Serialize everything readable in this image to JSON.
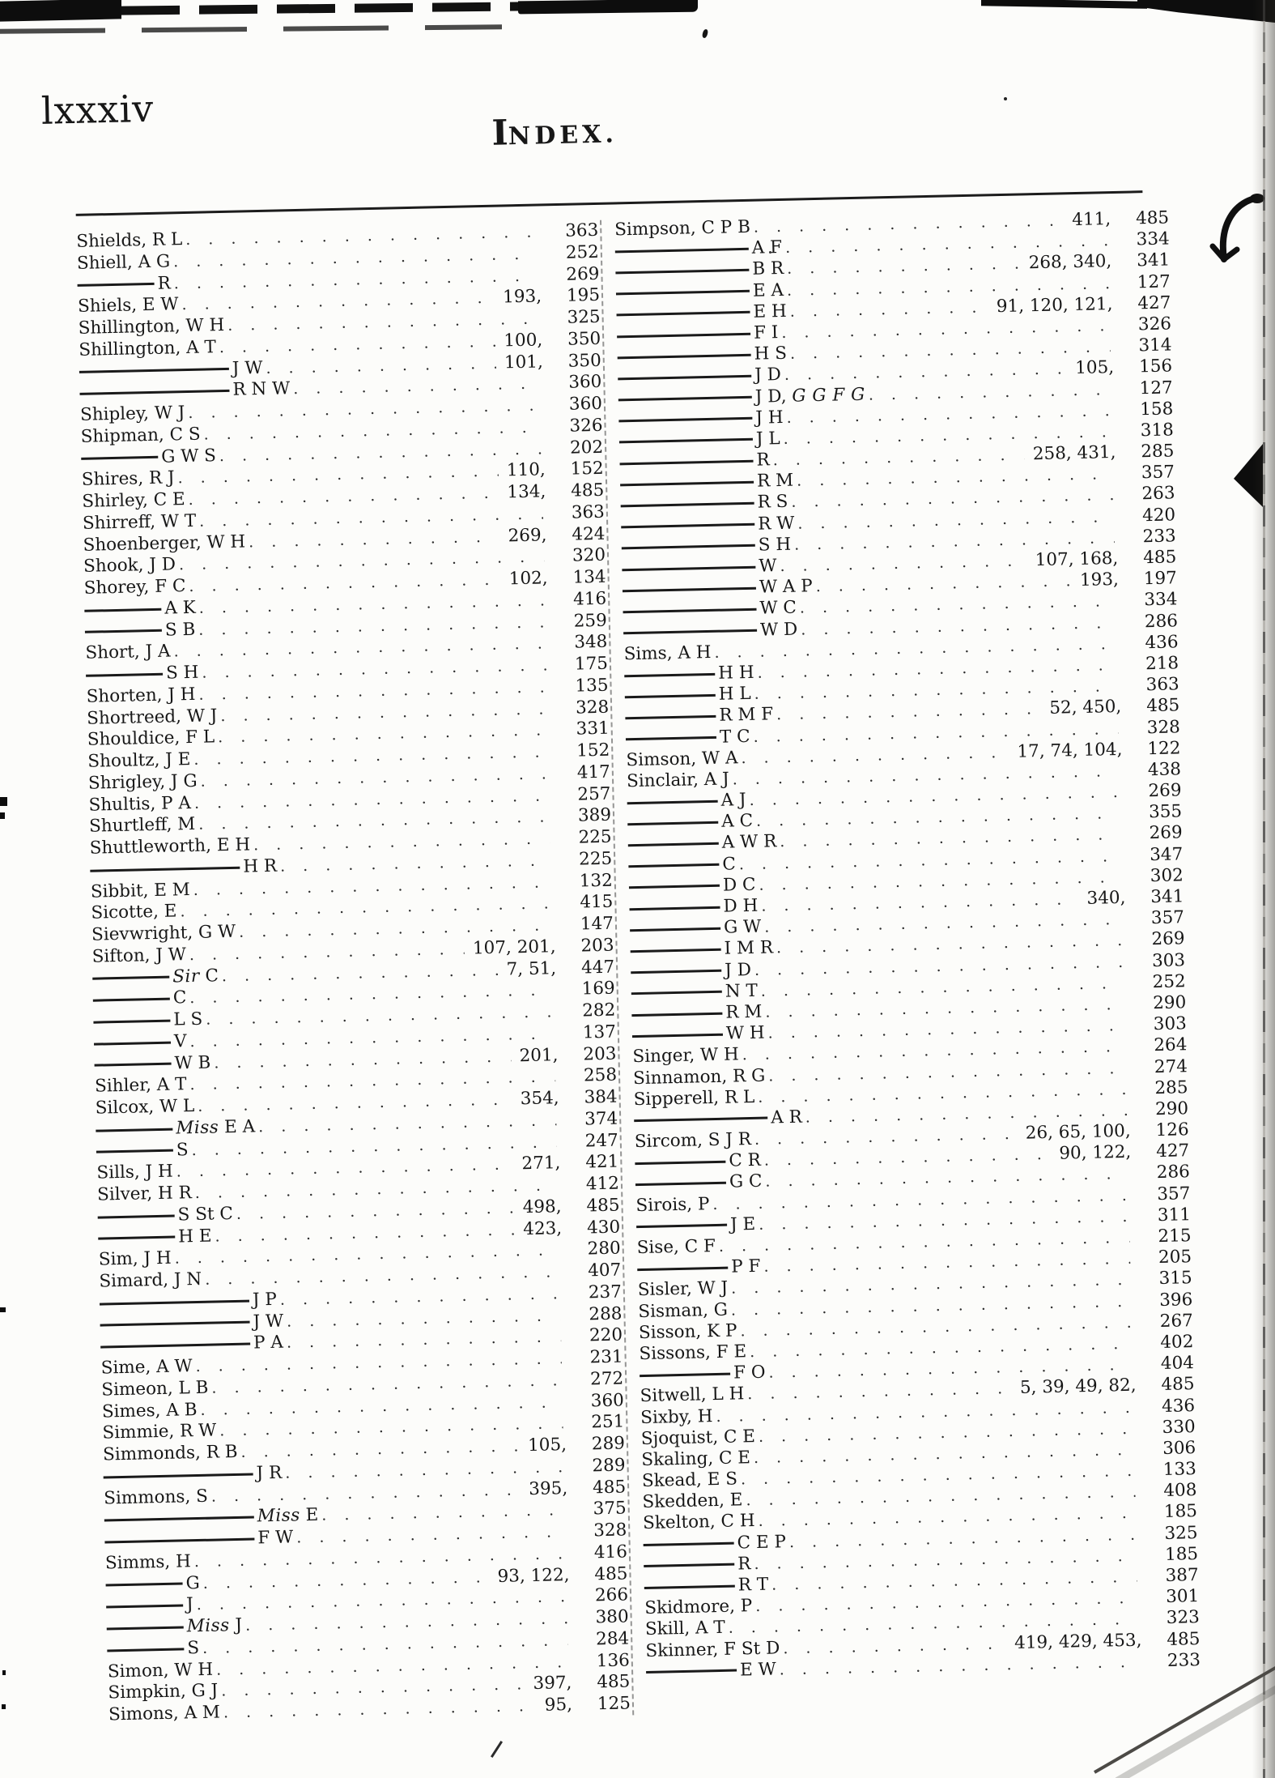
{
  "header": {
    "page_label": "lxxxiv",
    "title_initial": "I",
    "title_rest": "NDEX."
  },
  "columns": [
    {
      "entries": [
        {
          "dash": 0,
          "name": "Shields, R L",
          "refs": "",
          "page": "363"
        },
        {
          "dash": 0,
          "name": "Shiell, A G",
          "refs": "",
          "page": "252"
        },
        {
          "dash": 1,
          "name": "R",
          "refs": "",
          "page": "269"
        },
        {
          "dash": 0,
          "name": "Shiels, E W",
          "refs": "193,",
          "page": "195"
        },
        {
          "dash": 0,
          "name": "Shillington, W H",
          "refs": "",
          "page": "325"
        },
        {
          "dash": 0,
          "name": "Shillington, A T",
          "refs": "100,",
          "page": "350"
        },
        {
          "dash": 2,
          "name": "J W",
          "refs": "101,",
          "page": "350"
        },
        {
          "dash": 2,
          "name": "R N W",
          "refs": "",
          "page": "360"
        },
        {
          "dash": 0,
          "name": "Shipley, W J",
          "refs": "",
          "page": "360"
        },
        {
          "dash": 0,
          "name": "Shipman, C S",
          "refs": "",
          "page": "326"
        },
        {
          "dash": 1,
          "name": "G W S",
          "refs": "",
          "page": "202"
        },
        {
          "dash": 0,
          "name": "Shires, R J",
          "refs": "110,",
          "page": "152"
        },
        {
          "dash": 0,
          "name": "Shirley, C E",
          "refs": "134,",
          "page": "485"
        },
        {
          "dash": 0,
          "name": "Shirreff, W T",
          "refs": "",
          "page": "363"
        },
        {
          "dash": 0,
          "name": "Shoenberger, W H",
          "refs": "269,",
          "page": "424"
        },
        {
          "dash": 0,
          "name": "Shook, J D",
          "refs": "",
          "page": "320"
        },
        {
          "dash": 0,
          "name": "Shorey, F C",
          "refs": "102,",
          "page": "134"
        },
        {
          "dash": 1,
          "name": "A K",
          "refs": "",
          "page": "416"
        },
        {
          "dash": 1,
          "name": "S B",
          "refs": "",
          "page": "259"
        },
        {
          "dash": 0,
          "name": "Short, J A",
          "refs": "",
          "page": "348"
        },
        {
          "dash": 1,
          "name": "S H",
          "refs": "",
          "page": "175"
        },
        {
          "dash": 0,
          "name": "Shorten, J H",
          "refs": "",
          "page": "135"
        },
        {
          "dash": 0,
          "name": "Shortreed, W J",
          "refs": "",
          "page": "328"
        },
        {
          "dash": 0,
          "name": "Shouldice, F L",
          "refs": "",
          "page": "331"
        },
        {
          "dash": 0,
          "name": "Shoultz, J E",
          "refs": "",
          "page": "152"
        },
        {
          "dash": 0,
          "name": "Shrigley, J G",
          "refs": "",
          "page": "417"
        },
        {
          "dash": 0,
          "name": "Shultis, P A",
          "refs": "",
          "page": "257"
        },
        {
          "dash": 0,
          "name": "Shurtleff, M",
          "refs": "",
          "page": "389"
        },
        {
          "dash": 0,
          "name": "Shuttleworth, E H",
          "refs": "",
          "page": "225"
        },
        {
          "dash": 2,
          "name": "H R",
          "refs": "",
          "page": "225"
        },
        {
          "dash": 0,
          "name": "Sibbit, E M",
          "refs": "",
          "page": "132"
        },
        {
          "dash": 0,
          "name": "Sicotte, E",
          "refs": "",
          "page": "415"
        },
        {
          "dash": 0,
          "name": "Sievwright, G W",
          "refs": "",
          "page": "147"
        },
        {
          "dash": 0,
          "name": "Sifton, J W",
          "refs": "107, 201,",
          "page": "203"
        },
        {
          "dash": 1,
          "name": "*Sir* C",
          "refs": "7, 51,",
          "page": "447"
        },
        {
          "dash": 1,
          "name": "C",
          "refs": "",
          "page": "169"
        },
        {
          "dash": 1,
          "name": "L S",
          "refs": "",
          "page": "282"
        },
        {
          "dash": 1,
          "name": "V",
          "refs": "",
          "page": "137"
        },
        {
          "dash": 1,
          "name": "W B",
          "refs": "201,",
          "page": "203"
        },
        {
          "dash": 0,
          "name": "Sihler, A T",
          "refs": "",
          "page": "258"
        },
        {
          "dash": 0,
          "name": "Silcox, W L",
          "refs": "354,",
          "page": "384"
        },
        {
          "dash": 1,
          "name": "*Miss* E A",
          "refs": "",
          "page": "374"
        },
        {
          "dash": 1,
          "name": "S",
          "refs": "",
          "page": "247"
        },
        {
          "dash": 0,
          "name": "Sills, J H",
          "refs": "271,",
          "page": "421"
        },
        {
          "dash": 0,
          "name": "Silver, H R",
          "refs": "",
          "page": "412"
        },
        {
          "dash": 1,
          "name": "S St C",
          "refs": "498,",
          "page": "485"
        },
        {
          "dash": 1,
          "name": "H E",
          "refs": "423,",
          "page": "430"
        },
        {
          "dash": 0,
          "name": "Sim, J H",
          "refs": "",
          "page": "280"
        },
        {
          "dash": 0,
          "name": "Simard, J N",
          "refs": "",
          "page": "407"
        },
        {
          "dash": 2,
          "name": "J P",
          "refs": "",
          "page": "237"
        },
        {
          "dash": 2,
          "name": "J W",
          "refs": "",
          "page": "288"
        },
        {
          "dash": 2,
          "name": "P A",
          "refs": "",
          "page": "220"
        },
        {
          "dash": 0,
          "name": "Sime, A W",
          "refs": "",
          "page": "231"
        },
        {
          "dash": 0,
          "name": "Simeon, L B",
          "refs": "",
          "page": "272"
        },
        {
          "dash": 0,
          "name": "Simes, A B",
          "refs": "",
          "page": "360"
        },
        {
          "dash": 0,
          "name": "Simmie, R W",
          "refs": "",
          "page": "251"
        },
        {
          "dash": 0,
          "name": "Simmonds, R B",
          "refs": "105,",
          "page": "289"
        },
        {
          "dash": 2,
          "name": "J R",
          "refs": "",
          "page": "289"
        },
        {
          "dash": 0,
          "name": "Simmons, S",
          "refs": "395,",
          "page": "485"
        },
        {
          "dash": 2,
          "name": "*Miss* E",
          "refs": "",
          "page": "375"
        },
        {
          "dash": 2,
          "name": "F W",
          "refs": "",
          "page": "328"
        },
        {
          "dash": 0,
          "name": "Simms, H",
          "refs": "",
          "page": "416"
        },
        {
          "dash": 1,
          "name": "G",
          "refs": "93, 122,",
          "page": "485"
        },
        {
          "dash": 1,
          "name": "J",
          "refs": "",
          "page": "266"
        },
        {
          "dash": 1,
          "name": "*Miss* J",
          "refs": "",
          "page": "380"
        },
        {
          "dash": 1,
          "name": "S",
          "refs": "",
          "page": "284"
        },
        {
          "dash": 0,
          "name": "Simon, W H",
          "refs": "",
          "page": "136"
        },
        {
          "dash": 0,
          "name": "Simpkin, G J",
          "refs": "397,",
          "page": "485"
        },
        {
          "dash": 0,
          "name": "Simons, A M",
          "refs": "95,",
          "page": "125"
        }
      ]
    },
    {
      "entries": [
        {
          "dash": 0,
          "name": "Simpson, C P B",
          "refs": "411,",
          "page": "485"
        },
        {
          "dash": 2,
          "name": "A F",
          "refs": "",
          "page": "334"
        },
        {
          "dash": 2,
          "name": "B R",
          "refs": "268, 340,",
          "page": "341"
        },
        {
          "dash": 2,
          "name": "E A",
          "refs": "",
          "page": "127"
        },
        {
          "dash": 2,
          "name": "E H",
          "refs": "91, 120, 121,",
          "page": "427"
        },
        {
          "dash": 2,
          "name": "F I",
          "refs": "",
          "page": "326"
        },
        {
          "dash": 2,
          "name": "H S",
          "refs": "",
          "page": "314"
        },
        {
          "dash": 2,
          "name": "J D",
          "refs": "105,",
          "page": "156"
        },
        {
          "dash": 2,
          "name": "J D, *G G F G*",
          "refs": "",
          "page": "127"
        },
        {
          "dash": 2,
          "name": "J H",
          "refs": "",
          "page": "158"
        },
        {
          "dash": 2,
          "name": "J L",
          "refs": "",
          "page": "318"
        },
        {
          "dash": 2,
          "name": "R",
          "refs": "258, 431,",
          "page": "285"
        },
        {
          "dash": 2,
          "name": "R M",
          "refs": "",
          "page": "357"
        },
        {
          "dash": 2,
          "name": "R S",
          "refs": "",
          "page": "263"
        },
        {
          "dash": 2,
          "name": "R W",
          "refs": "",
          "page": "420"
        },
        {
          "dash": 2,
          "name": "S H",
          "refs": "",
          "page": "233"
        },
        {
          "dash": 2,
          "name": "W",
          "refs": "107, 168,",
          "page": "485"
        },
        {
          "dash": 2,
          "name": "W A P",
          "refs": "193,",
          "page": "197"
        },
        {
          "dash": 2,
          "name": "W C",
          "refs": "",
          "page": "334"
        },
        {
          "dash": 2,
          "name": "W D",
          "refs": "",
          "page": "286"
        },
        {
          "dash": 0,
          "name": "Sims, A H",
          "refs": "",
          "page": "436"
        },
        {
          "dash": 1,
          "name": "H H",
          "refs": "",
          "page": "218"
        },
        {
          "dash": 1,
          "name": "H L",
          "refs": "",
          "page": "363"
        },
        {
          "dash": 1,
          "name": "R M F",
          "refs": "52, 450,",
          "page": "485"
        },
        {
          "dash": 1,
          "name": "T C",
          "refs": "",
          "page": "328"
        },
        {
          "dash": 0,
          "name": "Simson, W A",
          "refs": "17, 74, 104,",
          "page": "122"
        },
        {
          "dash": 0,
          "name": "Sinclair, A J",
          "refs": "",
          "page": "438"
        },
        {
          "dash": 1,
          "name": "A J",
          "refs": "",
          "page": "269"
        },
        {
          "dash": 1,
          "name": "A C",
          "refs": "",
          "page": "355"
        },
        {
          "dash": 1,
          "name": "A W R",
          "refs": "",
          "page": "269"
        },
        {
          "dash": 1,
          "name": "C",
          "refs": "",
          "page": "347"
        },
        {
          "dash": 1,
          "name": "D C",
          "refs": "",
          "page": "302"
        },
        {
          "dash": 1,
          "name": "D H",
          "refs": "340,",
          "page": "341"
        },
        {
          "dash": 1,
          "name": "G W",
          "refs": "",
          "page": "357"
        },
        {
          "dash": 1,
          "name": "I M R",
          "refs": "",
          "page": "269"
        },
        {
          "dash": 1,
          "name": "J D",
          "refs": "",
          "page": "303"
        },
        {
          "dash": 1,
          "name": "N T",
          "refs": "",
          "page": "252"
        },
        {
          "dash": 1,
          "name": "R M",
          "refs": "",
          "page": "290"
        },
        {
          "dash": 1,
          "name": "W H",
          "refs": "",
          "page": "303"
        },
        {
          "dash": 0,
          "name": "Singer, W H",
          "refs": "",
          "page": "264"
        },
        {
          "dash": 0,
          "name": "Sinnamon, R G",
          "refs": "",
          "page": "274"
        },
        {
          "dash": 0,
          "name": "Sipperell, R L",
          "refs": "",
          "page": "285"
        },
        {
          "dash": 2,
          "name": "A R",
          "refs": "",
          "page": "290"
        },
        {
          "dash": 0,
          "name": "Sircom, S J R",
          "refs": "26, 65, 100,",
          "page": "126"
        },
        {
          "dash": 1,
          "name": "C R",
          "refs": "90, 122,",
          "page": "427"
        },
        {
          "dash": 1,
          "name": "G C",
          "refs": "",
          "page": "286"
        },
        {
          "dash": 0,
          "name": "Sirois, P",
          "refs": "",
          "page": "357"
        },
        {
          "dash": 1,
          "name": "J E",
          "refs": "",
          "page": "311"
        },
        {
          "dash": 0,
          "name": "Sise, C F",
          "refs": "",
          "page": "215"
        },
        {
          "dash": 1,
          "name": "P F",
          "refs": "",
          "page": "205"
        },
        {
          "dash": 0,
          "name": "Sisler, W J",
          "refs": "",
          "page": "315"
        },
        {
          "dash": 0,
          "name": "Sisman, G",
          "refs": "",
          "page": "396"
        },
        {
          "dash": 0,
          "name": "Sisson, K P",
          "refs": "",
          "page": "267"
        },
        {
          "dash": 0,
          "name": "Sissons, F E",
          "refs": "",
          "page": "402"
        },
        {
          "dash": 1,
          "name": "F O",
          "refs": "",
          "page": "404"
        },
        {
          "dash": 0,
          "name": "Sitwell, L H",
          "refs": "5, 39, 49, 82,",
          "page": "485"
        },
        {
          "dash": 0,
          "name": "Sixby, H",
          "refs": "",
          "page": "436"
        },
        {
          "dash": 0,
          "name": "Sjoquist, C E",
          "refs": "",
          "page": "330"
        },
        {
          "dash": 0,
          "name": "Skaling, C E",
          "refs": "",
          "page": "306"
        },
        {
          "dash": 0,
          "name": "Skead, E S",
          "refs": "",
          "page": "133"
        },
        {
          "dash": 0,
          "name": "Skedden, E",
          "refs": "",
          "page": "408"
        },
        {
          "dash": 0,
          "name": "Skelton, C H",
          "refs": "",
          "page": "185"
        },
        {
          "dash": 1,
          "name": "C E P",
          "refs": "",
          "page": "325"
        },
        {
          "dash": 1,
          "name": "R",
          "refs": "",
          "page": "185"
        },
        {
          "dash": 1,
          "name": "R T",
          "refs": "",
          "page": "387"
        },
        {
          "dash": 0,
          "name": "Skidmore, P",
          "refs": "",
          "page": "301"
        },
        {
          "dash": 0,
          "name": "Skill, A T",
          "refs": "",
          "page": "323"
        },
        {
          "dash": 0,
          "name": "Skinner, F St D",
          "refs": "419, 429, 453,",
          "page": "485"
        },
        {
          "dash": 1,
          "name": "E W",
          "refs": "",
          "page": "233"
        }
      ]
    }
  ]
}
